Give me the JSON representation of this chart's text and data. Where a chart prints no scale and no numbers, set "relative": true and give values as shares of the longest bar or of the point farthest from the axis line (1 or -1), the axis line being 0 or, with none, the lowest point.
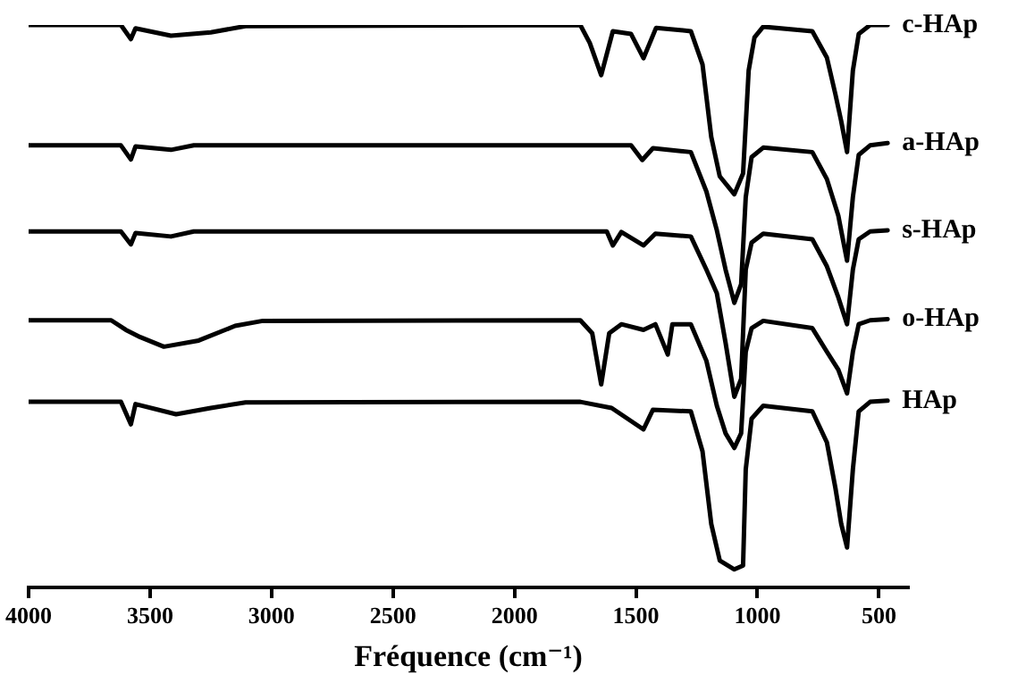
{
  "chart_data": {
    "type": "line",
    "relative": true,
    "xlabel": "Fréquence (cm⁻¹)",
    "xlim": [
      4000,
      380
    ],
    "xticks": [
      4000,
      3500,
      3000,
      2500,
      2000,
      1500,
      1000,
      500
    ],
    "tick_labels": "x",
    "marker": "none",
    "line_style": "solid",
    "series": [
      {
        "name": "c-HAp",
        "color": "#000000",
        "x": [
          4000,
          3620,
          3579,
          3560,
          3414,
          3250,
          3107,
          1729,
          1690,
          1643,
          1595,
          1520,
          1469,
          1417,
          1274,
          1226,
          1190,
          1155,
          1095,
          1059,
          1036,
          1012,
          976,
          774,
          714,
          679,
          655,
          631,
          607,
          583,
          536,
          464
        ],
        "values": [
          1,
          1,
          0.975,
          0.994,
          0.981,
          0.987,
          0.998,
          1,
          0.968,
          0.911,
          0.989,
          0.984,
          0.941,
          0.995,
          0.989,
          0.93,
          0.801,
          0.731,
          0.699,
          0.736,
          0.919,
          0.978,
          0.997,
          0.989,
          0.942,
          0.877,
          0.829,
          0.774,
          0.919,
          0.984,
          1,
          1
        ]
      },
      {
        "name": "a-HAp",
        "color": "#000000",
        "x": [
          4000,
          3620,
          3579,
          3560,
          3414,
          3320,
          1520,
          1474,
          1430,
          1274,
          1210,
          1167,
          1131,
          1095,
          1067,
          1048,
          1024,
          976,
          774,
          714,
          667,
          631,
          607,
          583,
          536,
          464
        ],
        "values": [
          0.786,
          0.786,
          0.761,
          0.784,
          0.778,
          0.786,
          0.786,
          0.76,
          0.781,
          0.774,
          0.704,
          0.635,
          0.565,
          0.506,
          0.539,
          0.694,
          0.765,
          0.782,
          0.774,
          0.726,
          0.661,
          0.581,
          0.694,
          0.769,
          0.786,
          0.79
        ]
      },
      {
        "name": "s-HAp",
        "color": "#000000",
        "x": [
          4000,
          3620,
          3579,
          3560,
          3414,
          3320,
          1620,
          1595,
          1560,
          1469,
          1420,
          1274,
          1210,
          1167,
          1131,
          1095,
          1067,
          1048,
          1024,
          976,
          774,
          714,
          667,
          631,
          607,
          583,
          536,
          464
        ],
        "values": [
          0.633,
          0.633,
          0.61,
          0.63,
          0.624,
          0.633,
          0.633,
          0.608,
          0.632,
          0.608,
          0.629,
          0.624,
          0.565,
          0.523,
          0.435,
          0.339,
          0.371,
          0.565,
          0.613,
          0.629,
          0.619,
          0.571,
          0.516,
          0.468,
          0.565,
          0.619,
          0.633,
          0.635
        ]
      },
      {
        "name": "o-HAp",
        "color": "#000000",
        "x": [
          4000,
          3660,
          3600,
          3540,
          3443,
          3300,
          3150,
          3036,
          1729,
          1680,
          1643,
          1610,
          1560,
          1469,
          1420,
          1369,
          1350,
          1274,
          1210,
          1167,
          1131,
          1095,
          1067,
          1048,
          1024,
          976,
          774,
          714,
          667,
          631,
          607,
          583,
          536,
          464
        ],
        "values": [
          0.475,
          0.475,
          0.458,
          0.445,
          0.428,
          0.439,
          0.465,
          0.474,
          0.475,
          0.452,
          0.361,
          0.452,
          0.468,
          0.458,
          0.468,
          0.414,
          0.468,
          0.468,
          0.403,
          0.323,
          0.274,
          0.248,
          0.274,
          0.419,
          0.461,
          0.474,
          0.461,
          0.419,
          0.387,
          0.345,
          0.419,
          0.468,
          0.475,
          0.477
        ]
      },
      {
        "name": "HAp",
        "color": "#000000",
        "x": [
          4000,
          3620,
          3579,
          3560,
          3393,
          3250,
          3107,
          1729,
          1600,
          1469,
          1430,
          1274,
          1226,
          1190,
          1155,
          1095,
          1059,
          1048,
          1024,
          976,
          774,
          714,
          679,
          655,
          631,
          607,
          583,
          536,
          464
        ],
        "values": [
          0.33,
          0.33,
          0.29,
          0.326,
          0.308,
          0.319,
          0.329,
          0.33,
          0.319,
          0.281,
          0.316,
          0.313,
          0.242,
          0.113,
          0.048,
          0.032,
          0.039,
          0.21,
          0.3,
          0.323,
          0.313,
          0.258,
          0.177,
          0.113,
          0.071,
          0.21,
          0.313,
          0.33,
          0.332
        ]
      }
    ]
  }
}
